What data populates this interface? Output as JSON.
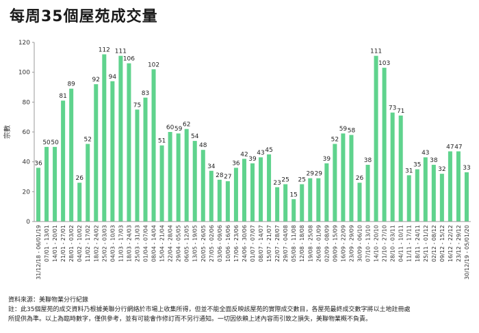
{
  "title": "每周35個屋苑成交量",
  "footer": {
    "source": "資料來源：美聯物業分行紀錄",
    "note_line1": "註：此35個屋苑的成交資料乃根據美聯分行網絡於市場上收集所得，但並不能全面反映該屋苑的實際成交數目，各屋苑最終成交數字將以土地註冊處",
    "note_line2": "所提供為準。以上為臨時數字，僅供參考，並有可能會作修訂而不另行通知。一切因依賴上述內容而引致之損失，美聯物業概不負責。"
  },
  "chart_data": {
    "type": "bar",
    "ylabel": "宗數",
    "xlabel": "",
    "ylim": [
      0,
      120
    ],
    "yticks": [
      0,
      20,
      40,
      60,
      80,
      100,
      120
    ],
    "bar_color": "#5fd38d",
    "grid": false,
    "categories": [
      "31/12/18 - 06/01/19",
      "07/01 - 13/01",
      "14/01 - 20/01",
      "21/01 - 27/01",
      "28/01 - 03/02",
      "04/02 - 10/02",
      "11/02 - 17/02",
      "18/02 - 24/02",
      "25/02 - 03/03",
      "04/03 - 10/03",
      "11/03 - 17/03",
      "18/03 - 24/03",
      "25/03 - 31/03",
      "01/04 - 07/04",
      "08/04 - 14/04",
      "15/04 - 21/04",
      "22/04 - 28/04",
      "29/04 - 05/05",
      "06/05 - 12/05",
      "13/05 - 19/05",
      "20/05 - 26/05",
      "27/05 - 02/06",
      "03/06 - 09/06",
      "10/06 - 16/06",
      "17/06 - 23/06",
      "24/06 - 30/06",
      "01/07 - 07/07",
      "08/07 - 14/07",
      "15/07 - 21/07",
      "22/07 - 28/07",
      "29/07 - 04/08",
      "05/08 - 11/08",
      "12/08 - 18/08",
      "19/08 - 25/08",
      "26/08 - 01/09",
      "02/09 - 08/09",
      "09/09 - 15/09",
      "16/09 - 22/09",
      "23/09 - 29/09",
      "30/09 - 06/10",
      "07/10 - 13/10",
      "14/10 - 20/10",
      "21/10 - 27/10",
      "28/10 - 03/11",
      "04/11 - 10/11",
      "11/11 - 17/11",
      "18/11 - 24/11",
      "25/11 - 01/12",
      "02/12 - 08/12",
      "09/12 - 15/12",
      "16/12 - 22/12",
      "23/12 - 29/12",
      "30/12/19 - 05/01/20"
    ],
    "values": [
      36,
      50,
      50,
      81,
      89,
      26,
      52,
      92,
      112,
      94,
      111,
      106,
      75,
      83,
      102,
      51,
      60,
      59,
      62,
      54,
      48,
      34,
      28,
      27,
      36,
      42,
      39,
      43,
      45,
      23,
      25,
      15,
      25,
      29,
      29,
      39,
      52,
      59,
      58,
      26,
      38,
      111,
      103,
      73,
      71,
      31,
      35,
      43,
      38,
      32,
      47,
      47,
      33
    ]
  }
}
